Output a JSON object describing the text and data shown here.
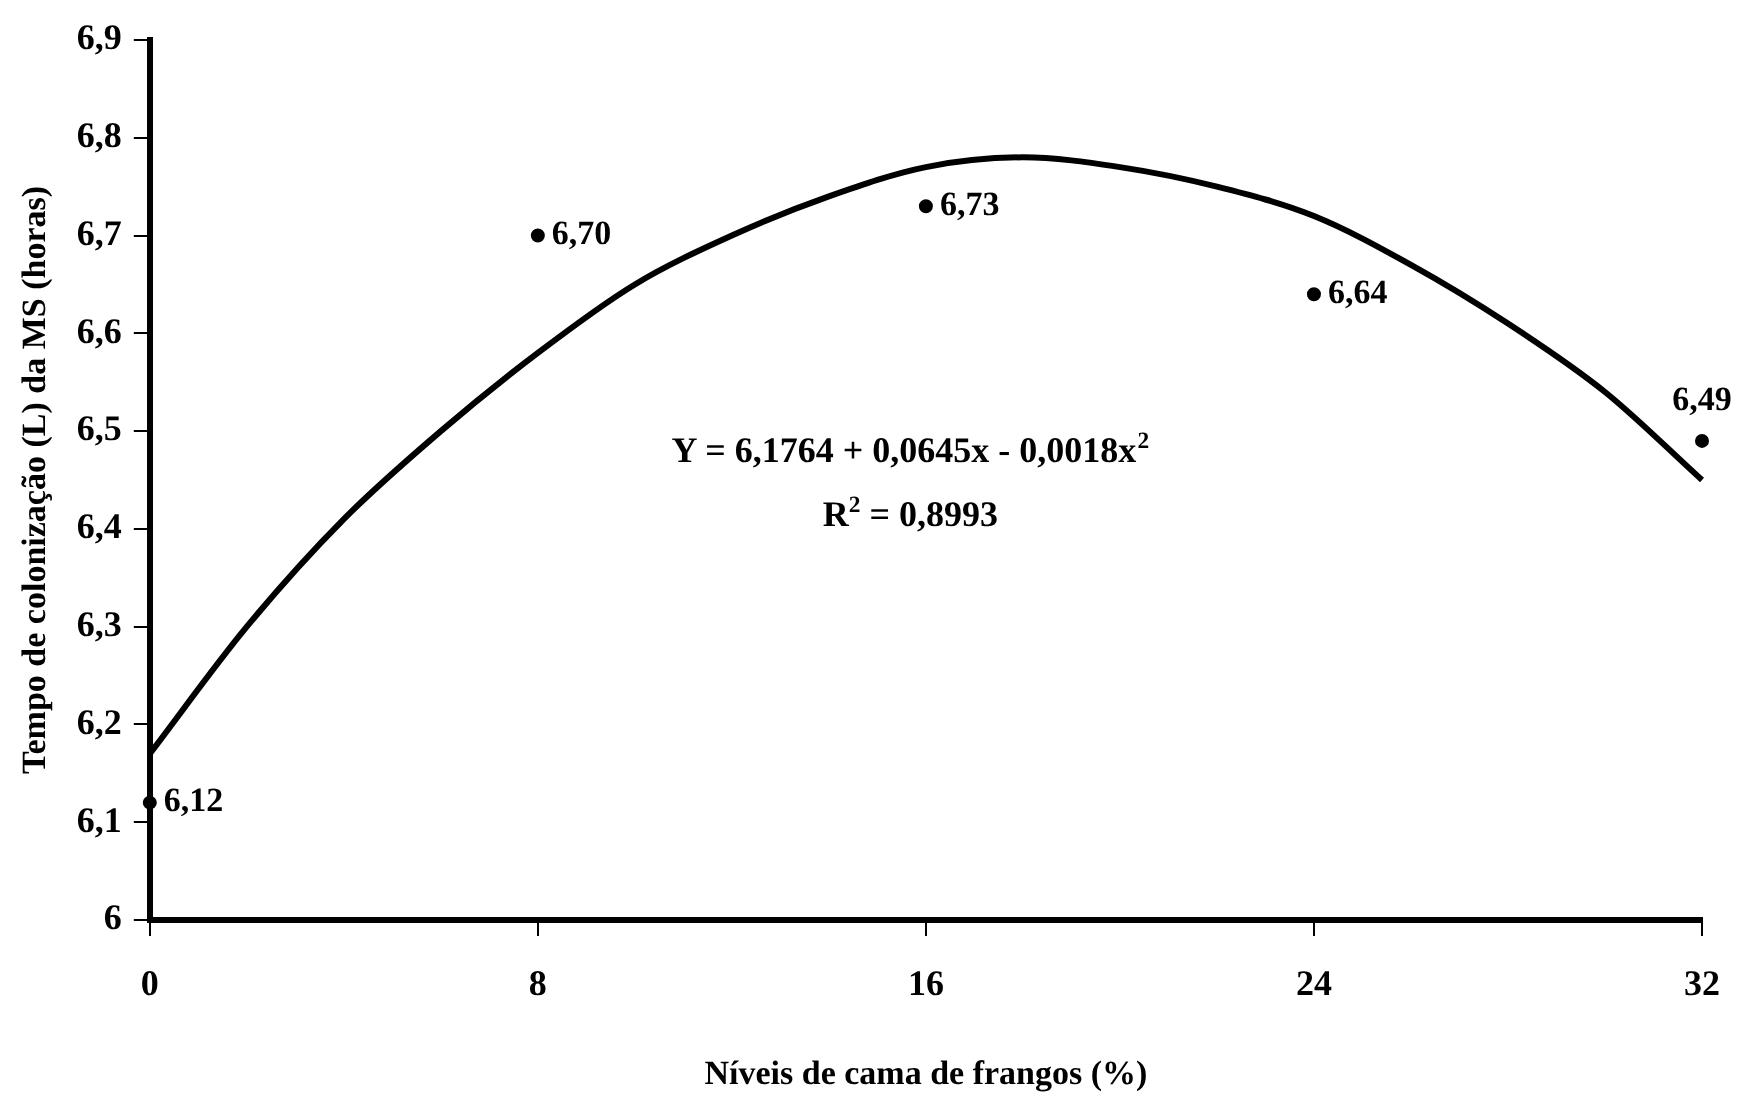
{
  "chart_data": {
    "type": "scatter",
    "xlabel": "Níveis de cama de frangos (%)",
    "ylabel": "Tempo de colonização (L) da MS (horas)",
    "annotations": [
      "Y = 6,1764 + 0,0645x - 0,0018x$^{2}$",
      "R$^{2}$ = 0,8993"
    ],
    "xlim": [
      0,
      32
    ],
    "xticks": [
      0,
      8,
      16,
      24,
      32
    ],
    "ylim": [
      6,
      6.9
    ],
    "yticks": [
      6,
      {
        "value": 6.1,
        "label": "6,1"
      },
      {
        "value": 6.2,
        "label": "6,2"
      },
      {
        "value": 6.3,
        "label": "6,3"
      },
      {
        "value": 6.4,
        "label": "6,4"
      },
      {
        "value": 6.5,
        "label": "6,5"
      },
      {
        "value": 6.6,
        "label": "6,6"
      },
      {
        "value": 6.7,
        "label": "6,7"
      },
      {
        "value": 6.8,
        "label": "6,8"
      },
      {
        "value": 6.9,
        "label": "6,9"
      }
    ],
    "grid": false,
    "legend": false,
    "series": [
      {
        "type": "scatter",
        "color": "#000000",
        "marker": "circle",
        "x": [
          0,
          8,
          16,
          24,
          32
        ],
        "values": [
          6.12,
          6.7,
          6.73,
          6.64,
          6.49
        ],
        "value_labels": [
          "6,12",
          "6,70",
          "6,73",
          "6,64",
          "6,49"
        ]
      },
      {
        "type": "line",
        "color": "#000000",
        "marker": "none",
        "line_style": "solid",
        "x": [
          0,
          2,
          4,
          6,
          8,
          10,
          12,
          14,
          16,
          18,
          20,
          22,
          24,
          26,
          28,
          30,
          32
        ],
        "values": [
          6.17,
          6.3,
          6.41,
          6.5,
          6.58,
          6.65,
          6.7,
          6.74,
          6.77,
          6.78,
          6.77,
          6.75,
          6.72,
          6.67,
          6.61,
          6.54,
          6.45
        ]
      }
    ]
  }
}
